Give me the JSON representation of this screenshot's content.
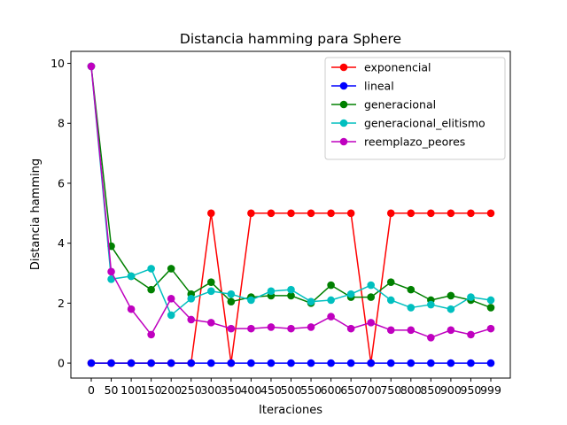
{
  "chart_data": {
    "type": "line",
    "title": "Distancia hamming para Sphere",
    "xlabel": "Iteraciones",
    "ylabel": "Distancia hamming",
    "x": [
      0,
      50,
      100,
      150,
      200,
      250,
      300,
      350,
      400,
      450,
      500,
      550,
      600,
      650,
      700,
      750,
      800,
      850,
      900,
      950,
      999
    ],
    "x_tick_labels": [
      "0",
      "50",
      "100",
      "150",
      "200",
      "250",
      "300",
      "350",
      "400",
      "450",
      "500",
      "550",
      "600",
      "650",
      "700",
      "750",
      "800",
      "850",
      "900",
      "950",
      "999"
    ],
    "y_ticks": [
      0,
      2,
      4,
      6,
      8,
      10
    ],
    "ylim": [
      -0.5,
      10.4
    ],
    "grid": false,
    "legend_position": "top-right",
    "series": [
      {
        "name": "exponencial",
        "color": "#ff0000",
        "values": [
          0,
          0,
          0,
          0,
          0,
          0,
          5,
          0,
          5,
          5,
          5,
          5,
          5,
          5,
          0,
          5,
          5,
          5,
          5,
          5,
          5
        ]
      },
      {
        "name": "lineal",
        "color": "#0000ff",
        "values": [
          0,
          0,
          0,
          0,
          0,
          0,
          0,
          0,
          0,
          0,
          0,
          0,
          0,
          0,
          0,
          0,
          0,
          0,
          0,
          0,
          0
        ]
      },
      {
        "name": "generacional",
        "color": "#008000",
        "values": [
          9.9,
          3.9,
          2.9,
          2.45,
          3.15,
          2.3,
          2.7,
          2.05,
          2.2,
          2.25,
          2.25,
          2.0,
          2.6,
          2.2,
          2.2,
          2.7,
          2.45,
          2.1,
          2.25,
          2.1,
          1.85
        ]
      },
      {
        "name": "generacional_elitismo",
        "color": "#00bfbf",
        "values": [
          9.9,
          2.8,
          2.9,
          3.15,
          1.6,
          2.15,
          2.4,
          2.3,
          2.1,
          2.4,
          2.45,
          2.05,
          2.1,
          2.3,
          2.6,
          2.1,
          1.85,
          1.95,
          1.8,
          2.2,
          2.1
        ]
      },
      {
        "name": "reemplazo_peores",
        "color": "#bf00bf",
        "values": [
          9.9,
          3.05,
          1.8,
          0.95,
          2.15,
          1.45,
          1.35,
          1.15,
          1.15,
          1.2,
          1.15,
          1.2,
          1.55,
          1.15,
          1.35,
          1.1,
          1.1,
          0.85,
          1.1,
          0.95,
          1.15
        ]
      }
    ]
  }
}
